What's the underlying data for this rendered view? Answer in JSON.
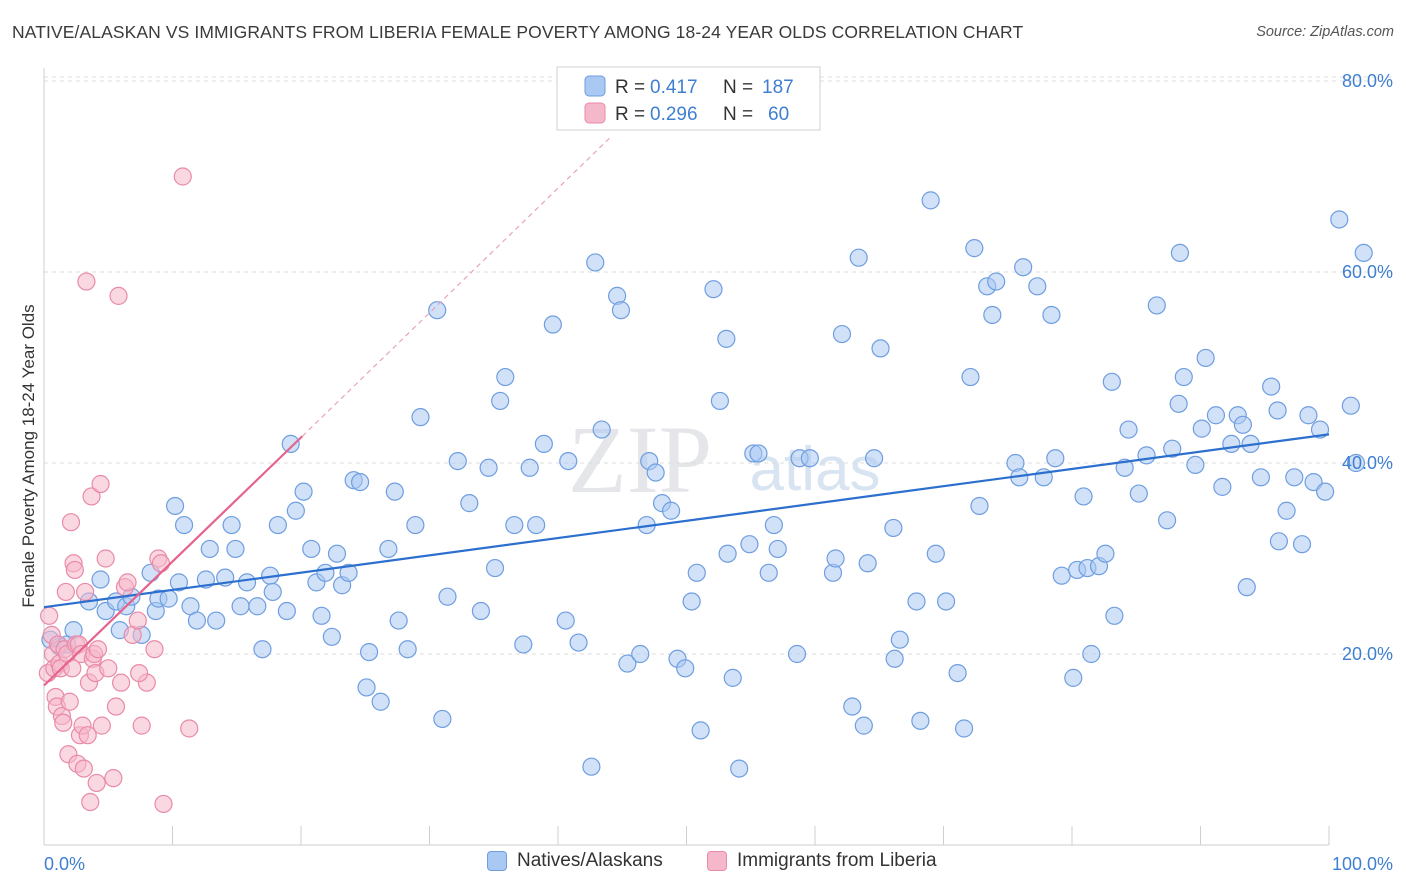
{
  "title": "NATIVE/ALASKAN VS IMMIGRANTS FROM LIBERIA FEMALE POVERTY AMONG 18-24 YEAR OLDS CORRELATION CHART",
  "source": "Source: ZipAtlas.com",
  "watermark": {
    "zip": "ZIP",
    "atlas": "atlas"
  },
  "colors": {
    "blue_fill": "#a9c8f2",
    "blue_stroke": "#6f9ee0",
    "blue_line": "#2c6fce",
    "pink_fill": "#f5b8cb",
    "pink_stroke": "#e98aa8",
    "pink_line": "#e5638d",
    "axis_text": "#3f7fd1",
    "grid": "#dcdcdc"
  },
  "legend_top": [
    {
      "r_label": "R =",
      "r_value": "0.417",
      "n_label": "N =",
      "n_value": "187",
      "series": "blue"
    },
    {
      "r_label": "R =",
      "r_value": "0.296",
      "n_label": "N =",
      "n_value": "60",
      "series": "pink"
    }
  ],
  "legend_bottom": [
    {
      "label": "Natives/Alaskans",
      "series": "blue"
    },
    {
      "label": "Immigrants from Liberia",
      "series": "pink"
    }
  ],
  "chart_data": {
    "type": "scatter",
    "title": "NATIVE/ALASKAN VS IMMIGRANTS FROM LIBERIA FEMALE POVERTY AMONG 18-24 YEAR OLDS CORRELATION CHART",
    "xlabel": "",
    "ylabel": "Female Poverty Among 18-24 Year Olds",
    "xlim": [
      0,
      100
    ],
    "ylim": [
      0,
      80
    ],
    "x_tick_labels": [
      {
        "value": 0,
        "label": "0.0%"
      },
      {
        "value": 100,
        "label": "100.0%"
      }
    ],
    "y_tick_labels": [
      {
        "value": 20,
        "label": "20.0%"
      },
      {
        "value": 40,
        "label": "40.0%"
      },
      {
        "value": 60,
        "label": "60.0%"
      },
      {
        "value": 80,
        "label": "80.0%"
      }
    ],
    "grid": "horizontal dashed",
    "legend_placement": "top-center",
    "series": [
      {
        "name": "Natives/Alaskans",
        "color": "blue",
        "trend": {
          "x": [
            0,
            100
          ],
          "y": [
            24.9,
            43.0
          ]
        },
        "points": [
          [
            0.5,
            21.5
          ],
          [
            1.2,
            20.8
          ],
          [
            1.8,
            21
          ],
          [
            2.3,
            22.5
          ],
          [
            3.5,
            25.5
          ],
          [
            4.4,
            27.8
          ],
          [
            4.8,
            24.5
          ],
          [
            5.6,
            25.5
          ],
          [
            5.9,
            22.5
          ],
          [
            6.4,
            25
          ],
          [
            6.8,
            26
          ],
          [
            7.6,
            22
          ],
          [
            8.3,
            28.5
          ],
          [
            8.7,
            24.5
          ],
          [
            8.9,
            25.8
          ],
          [
            9.7,
            25.8
          ],
          [
            10.2,
            35.5
          ],
          [
            10.5,
            27.5
          ],
          [
            10.9,
            33.5
          ],
          [
            11.4,
            25
          ],
          [
            11.9,
            23.5
          ],
          [
            12.6,
            27.8
          ],
          [
            12.9,
            31
          ],
          [
            13.4,
            23.5
          ],
          [
            14.1,
            28
          ],
          [
            14.6,
            33.5
          ],
          [
            14.9,
            31
          ],
          [
            15.3,
            25
          ],
          [
            15.8,
            27.5
          ],
          [
            16.6,
            25
          ],
          [
            17.0,
            20.5
          ],
          [
            17.6,
            28.2
          ],
          [
            17.8,
            26.5
          ],
          [
            18.2,
            33.5
          ],
          [
            18.9,
            24.5
          ],
          [
            19.2,
            42
          ],
          [
            19.6,
            35
          ],
          [
            20.2,
            37
          ],
          [
            20.8,
            31
          ],
          [
            21.2,
            27.5
          ],
          [
            21.6,
            24
          ],
          [
            21.9,
            28.5
          ],
          [
            22.4,
            21.8
          ],
          [
            22.8,
            30.5
          ],
          [
            23.2,
            27.2
          ],
          [
            23.7,
            28.5
          ],
          [
            24.1,
            38.2
          ],
          [
            24.6,
            38
          ],
          [
            25.1,
            16.5
          ],
          [
            25.3,
            20.2
          ],
          [
            26.2,
            15
          ],
          [
            26.8,
            31
          ],
          [
            27.3,
            37
          ],
          [
            27.6,
            23.5
          ],
          [
            28.3,
            20.5
          ],
          [
            28.9,
            33.5
          ],
          [
            29.3,
            44.8
          ],
          [
            30.6,
            56
          ],
          [
            31.0,
            13.2
          ],
          [
            31.4,
            26
          ],
          [
            32.2,
            40.2
          ],
          [
            33.1,
            35.8
          ],
          [
            34.0,
            24.5
          ],
          [
            34.6,
            39.5
          ],
          [
            35.1,
            29
          ],
          [
            35.5,
            46.5
          ],
          [
            35.9,
            49
          ],
          [
            36.6,
            33.5
          ],
          [
            37.3,
            21
          ],
          [
            37.8,
            39.5
          ],
          [
            38.3,
            33.5
          ],
          [
            38.9,
            42
          ],
          [
            39.6,
            54.5
          ],
          [
            40.6,
            23.5
          ],
          [
            40.8,
            40.2
          ],
          [
            41.6,
            21.2
          ],
          [
            42.6,
            8.2
          ],
          [
            42.9,
            61
          ],
          [
            43.4,
            43.5
          ],
          [
            44.6,
            57.5
          ],
          [
            44.9,
            56
          ],
          [
            45.4,
            19
          ],
          [
            46.4,
            20
          ],
          [
            46.9,
            33.5
          ],
          [
            47.1,
            40.2
          ],
          [
            47.6,
            39
          ],
          [
            48.1,
            35.8
          ],
          [
            48.8,
            35
          ],
          [
            49.3,
            19.5
          ],
          [
            49.9,
            18.5
          ],
          [
            50.4,
            25.5
          ],
          [
            50.8,
            28.5
          ],
          [
            51.1,
            12
          ],
          [
            52.1,
            58.2
          ],
          [
            52.6,
            46.5
          ],
          [
            53.1,
            53
          ],
          [
            53.2,
            30.5
          ],
          [
            53.6,
            17.5
          ],
          [
            54.1,
            8
          ],
          [
            54.9,
            31.5
          ],
          [
            55.2,
            41
          ],
          [
            55.6,
            41
          ],
          [
            56.4,
            28.5
          ],
          [
            56.8,
            33.5
          ],
          [
            57.1,
            31
          ],
          [
            58.6,
            20
          ],
          [
            58.8,
            40.5
          ],
          [
            59.6,
            40.5
          ],
          [
            61.4,
            28.5
          ],
          [
            61.6,
            30
          ],
          [
            62.1,
            53.5
          ],
          [
            62.9,
            14.5
          ],
          [
            63.4,
            61.5
          ],
          [
            63.8,
            12.5
          ],
          [
            64.1,
            29.5
          ],
          [
            64.6,
            40.5
          ],
          [
            65.1,
            52
          ],
          [
            66.1,
            33.2
          ],
          [
            66.2,
            19.5
          ],
          [
            66.6,
            21.5
          ],
          [
            67.9,
            25.5
          ],
          [
            68.2,
            13
          ],
          [
            69.0,
            67.5
          ],
          [
            69.4,
            30.5
          ],
          [
            70.2,
            25.5
          ],
          [
            71.1,
            18
          ],
          [
            71.6,
            12.2
          ],
          [
            72.1,
            49
          ],
          [
            72.4,
            62.5
          ],
          [
            72.8,
            35.5
          ],
          [
            73.4,
            58.5
          ],
          [
            73.8,
            55.5
          ],
          [
            74.1,
            59
          ],
          [
            75.6,
            40
          ],
          [
            75.9,
            38.5
          ],
          [
            76.2,
            60.5
          ],
          [
            77.3,
            58.5
          ],
          [
            77.8,
            38.5
          ],
          [
            78.4,
            55.5
          ],
          [
            78.7,
            40.5
          ],
          [
            79.2,
            28.2
          ],
          [
            80.1,
            17.5
          ],
          [
            80.4,
            28.8
          ],
          [
            80.9,
            36.5
          ],
          [
            81.2,
            29
          ],
          [
            81.5,
            20
          ],
          [
            82.1,
            29.2
          ],
          [
            82.6,
            30.5
          ],
          [
            83.1,
            48.5
          ],
          [
            83.3,
            24
          ],
          [
            84.1,
            39.5
          ],
          [
            84.4,
            43.5
          ],
          [
            85.2,
            36.8
          ],
          [
            85.8,
            40.8
          ],
          [
            86.6,
            56.5
          ],
          [
            87.4,
            34
          ],
          [
            87.8,
            41.5
          ],
          [
            88.3,
            46.2
          ],
          [
            88.4,
            62
          ],
          [
            88.7,
            49
          ],
          [
            89.6,
            39.8
          ],
          [
            90.1,
            43.6
          ],
          [
            90.4,
            51
          ],
          [
            91.2,
            45
          ],
          [
            91.7,
            37.5
          ],
          [
            92.4,
            42
          ],
          [
            92.9,
            45
          ],
          [
            93.3,
            44
          ],
          [
            93.6,
            27
          ],
          [
            93.9,
            42
          ],
          [
            94.7,
            38.5
          ],
          [
            95.5,
            48
          ],
          [
            96.0,
            45.5
          ],
          [
            96.1,
            31.8
          ],
          [
            96.7,
            35
          ],
          [
            97.3,
            38.5
          ],
          [
            97.9,
            31.5
          ],
          [
            98.4,
            45
          ],
          [
            98.8,
            38
          ],
          [
            99.3,
            43.5
          ],
          [
            99.7,
            37
          ],
          [
            100.8,
            65.5
          ],
          [
            101.7,
            46
          ],
          [
            102.1,
            40
          ],
          [
            102.7,
            62
          ]
        ]
      },
      {
        "name": "Immigrants from Liberia",
        "color": "pink",
        "trend": {
          "x": [
            0,
            20.1
          ],
          "y": [
            16.7,
            42.8
          ]
        },
        "trend_extension": {
          "x": [
            20.1,
            44
          ],
          "y": [
            42.8,
            74
          ]
        },
        "points": [
          [
            0.3,
            18
          ],
          [
            0.4,
            24
          ],
          [
            0.6,
            22
          ],
          [
            0.7,
            20
          ],
          [
            0.8,
            18.5
          ],
          [
            0.9,
            15.5
          ],
          [
            1.0,
            14.5
          ],
          [
            1.1,
            21
          ],
          [
            1.2,
            19
          ],
          [
            1.3,
            18.5
          ],
          [
            1.4,
            13.5
          ],
          [
            1.5,
            12.8
          ],
          [
            1.6,
            20.5
          ],
          [
            1.7,
            26.5
          ],
          [
            1.8,
            20
          ],
          [
            1.9,
            9.5
          ],
          [
            2.0,
            15
          ],
          [
            2.1,
            33.8
          ],
          [
            2.2,
            18.5
          ],
          [
            2.3,
            29.5
          ],
          [
            2.4,
            28.8
          ],
          [
            2.5,
            21
          ],
          [
            2.6,
            8.5
          ],
          [
            2.7,
            21
          ],
          [
            2.8,
            11.5
          ],
          [
            2.9,
            20
          ],
          [
            3.0,
            12.5
          ],
          [
            3.1,
            8
          ],
          [
            3.2,
            26.5
          ],
          [
            3.3,
            59
          ],
          [
            3.4,
            11.5
          ],
          [
            3.5,
            17
          ],
          [
            3.6,
            4.5
          ],
          [
            3.7,
            36.5
          ],
          [
            3.8,
            19.5
          ],
          [
            3.9,
            20
          ],
          [
            4.0,
            18
          ],
          [
            4.1,
            6.5
          ],
          [
            4.2,
            20.5
          ],
          [
            4.4,
            37.8
          ],
          [
            4.5,
            12.5
          ],
          [
            4.8,
            30
          ],
          [
            5.0,
            18.5
          ],
          [
            5.4,
            7
          ],
          [
            5.6,
            14.5
          ],
          [
            5.8,
            57.5
          ],
          [
            6.0,
            17
          ],
          [
            6.3,
            27
          ],
          [
            6.5,
            27.5
          ],
          [
            6.9,
            22
          ],
          [
            7.3,
            23.5
          ],
          [
            7.6,
            12.5
          ],
          [
            8.0,
            17
          ],
          [
            8.6,
            20.5
          ],
          [
            8.9,
            30
          ],
          [
            9.1,
            29.5
          ],
          [
            9.3,
            4.3
          ],
          [
            10.8,
            70
          ],
          [
            11.3,
            12.2
          ],
          [
            7.4,
            18
          ]
        ]
      }
    ]
  }
}
